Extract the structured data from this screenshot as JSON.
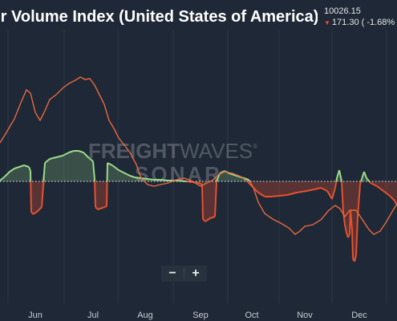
{
  "header": {
    "title": "ler Volume Index (United States of America)",
    "price": "10026.15",
    "change": "171.30 ( -1.68%",
    "change_direction": "down"
  },
  "watermark": {
    "line1_bold": "FREIGHT",
    "line1_light": "WAVES",
    "line1_mark": "®",
    "line2": "SONAR"
  },
  "zoom": {
    "minus": "−",
    "plus": "+"
  },
  "colors": {
    "background": "#1e2836",
    "positive": "#9bd98a",
    "negative": "#e4512f",
    "index_line": "#e8693f",
    "baseline": "#c7cdd4"
  },
  "chart_data": {
    "type": "line",
    "x_tick_labels": [
      "Jun",
      "Jul",
      "Aug",
      "Sep",
      "Oct",
      "Nov",
      "Dec"
    ],
    "grid": "vertical",
    "baseline": "dotted horizontal line at zero",
    "series": [
      {
        "style": "outline line",
        "points": [
          [
            0,
            178
          ],
          [
            8,
            165
          ],
          [
            18,
            148
          ],
          [
            26,
            128
          ],
          [
            33,
            112
          ],
          [
            38,
            116
          ],
          [
            44,
            140
          ],
          [
            50,
            150
          ],
          [
            56,
            138
          ],
          [
            62,
            124
          ],
          [
            70,
            118
          ],
          [
            78,
            110
          ],
          [
            86,
            104
          ],
          [
            94,
            100
          ],
          [
            100,
            96
          ],
          [
            106,
            99
          ],
          [
            112,
            98
          ],
          [
            118,
            106
          ],
          [
            124,
            118
          ],
          [
            130,
            130
          ],
          [
            136,
            150
          ],
          [
            142,
            160
          ],
          [
            148,
            172
          ],
          [
            156,
            182
          ],
          [
            162,
            190
          ],
          [
            170,
            205
          ],
          [
            176,
            222
          ],
          [
            184,
            230
          ],
          [
            192,
            232
          ],
          [
            200,
            230
          ],
          [
            210,
            228
          ],
          [
            220,
            224
          ],
          [
            230,
            222
          ],
          [
            240,
            226
          ],
          [
            250,
            232
          ],
          [
            258,
            228
          ],
          [
            266,
            224
          ],
          [
            272,
            218
          ],
          [
            280,
            214
          ],
          [
            290,
            216
          ],
          [
            300,
            220
          ],
          [
            308,
            226
          ],
          [
            316,
            234
          ],
          [
            322,
            252
          ],
          [
            330,
            266
          ],
          [
            340,
            273
          ],
          [
            350,
            278
          ],
          [
            360,
            284
          ],
          [
            368,
            292
          ],
          [
            374,
            288
          ],
          [
            380,
            282
          ],
          [
            390,
            280
          ],
          [
            400,
            274
          ],
          [
            410,
            262
          ],
          [
            418,
            256
          ],
          [
            424,
            260
          ],
          [
            430,
            270
          ],
          [
            436,
            262
          ],
          [
            444,
            262
          ],
          [
            452,
            274
          ],
          [
            460,
            286
          ],
          [
            466,
            292
          ],
          [
            474,
            288
          ],
          [
            482,
            276
          ],
          [
            490,
            262
          ],
          [
            495,
            254
          ]
        ]
      },
      {
        "style": "filled area with baseline, green above / red below",
        "points": [
          [
            0,
            225
          ],
          [
            6,
            220
          ],
          [
            12,
            214
          ],
          [
            18,
            210
          ],
          [
            24,
            208
          ],
          [
            30,
            206
          ],
          [
            36,
            208
          ],
          [
            38,
            213
          ],
          [
            39,
            264
          ],
          [
            41,
            267
          ],
          [
            46,
            264
          ],
          [
            52,
            258
          ],
          [
            56,
            203
          ],
          [
            62,
            198
          ],
          [
            70,
            196
          ],
          [
            78,
            194
          ],
          [
            86,
            190
          ],
          [
            92,
            188
          ],
          [
            98,
            188
          ],
          [
            104,
            190
          ],
          [
            110,
            196
          ],
          [
            116,
            201
          ],
          [
            118,
            224
          ],
          [
            119,
            258
          ],
          [
            122,
            261
          ],
          [
            128,
            259
          ],
          [
            133,
            257
          ],
          [
            134,
            203
          ],
          [
            140,
            206
          ],
          [
            148,
            212
          ],
          [
            156,
            216
          ],
          [
            162,
            219
          ],
          [
            168,
            221
          ],
          [
            176,
            222
          ],
          [
            184,
            223
          ],
          [
            192,
            224
          ],
          [
            200,
            224
          ],
          [
            210,
            225
          ],
          [
            220,
            225
          ],
          [
            232,
            226
          ],
          [
            240,
            227
          ],
          [
            248,
            228
          ],
          [
            252,
            230
          ],
          [
            253,
            273
          ],
          [
            256,
            276
          ],
          [
            262,
            272
          ],
          [
            268,
            270
          ],
          [
            270,
            226
          ],
          [
            274,
            216
          ],
          [
            280,
            213
          ],
          [
            286,
            216
          ],
          [
            292,
            218
          ],
          [
            298,
            220
          ],
          [
            304,
            222
          ],
          [
            310,
            224
          ],
          [
            316,
            234
          ],
          [
            322,
            240
          ],
          [
            330,
            245
          ],
          [
            338,
            245
          ],
          [
            348,
            244
          ],
          [
            358,
            243
          ],
          [
            370,
            240
          ],
          [
            382,
            238
          ],
          [
            392,
            236
          ],
          [
            400,
            234
          ],
          [
            408,
            238
          ],
          [
            414,
            248
          ],
          [
            418,
            234
          ],
          [
            420,
            222
          ],
          [
            423,
            212
          ],
          [
            426,
            226
          ],
          [
            428,
            264
          ],
          [
            430,
            280
          ],
          [
            432,
            290
          ],
          [
            434,
            296
          ],
          [
            436,
            292
          ],
          [
            437,
            262
          ],
          [
            439,
            286
          ],
          [
            440,
            322
          ],
          [
            442,
            326
          ],
          [
            444,
            318
          ],
          [
            446,
            270
          ],
          [
            449,
            230
          ],
          [
            452,
            220
          ],
          [
            454,
            214
          ],
          [
            457,
            222
          ],
          [
            462,
            228
          ],
          [
            470,
            232
          ],
          [
            478,
            238
          ],
          [
            486,
            244
          ],
          [
            492,
            250
          ],
          [
            495,
            256
          ]
        ]
      }
    ]
  }
}
